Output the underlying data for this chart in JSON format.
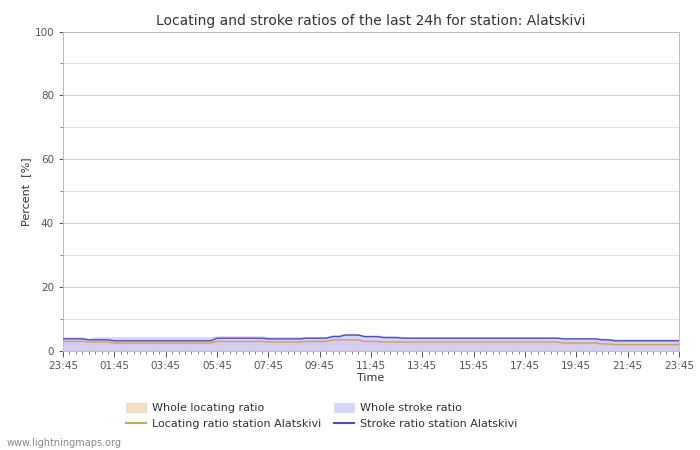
{
  "title": "Locating and stroke ratios of the last 24h for station: Alatskivi",
  "xlabel": "Time",
  "ylabel": "Percent  [%]",
  "ylim": [
    0,
    100
  ],
  "yticks": [
    0,
    20,
    40,
    60,
    80,
    100
  ],
  "yticks_minor": [
    10,
    30,
    50,
    70,
    90
  ],
  "x_labels": [
    "23:45",
    "01:45",
    "03:45",
    "05:45",
    "07:45",
    "09:45",
    "11:45",
    "13:45",
    "15:45",
    "17:45",
    "19:45",
    "21:45",
    "23:45"
  ],
  "n_points": 97,
  "whole_locating_fill_color": "#f5deb3",
  "whole_locating_fill_alpha": 0.85,
  "whole_stroke_fill_color": "#c8c8ff",
  "whole_stroke_fill_alpha": 0.75,
  "locating_line_color": "#d2a060",
  "stroke_line_color": "#5050b0",
  "background_color": "#ffffff",
  "plot_bg_color": "#ffffff",
  "grid_color": "#c8c8c8",
  "watermark": "www.lightningmaps.org",
  "title_fontsize": 10,
  "axis_fontsize": 8,
  "tick_fontsize": 7.5,
  "legend_fontsize": 8,
  "whole_locating_values": [
    3.5,
    3.5,
    3.5,
    3.5,
    3.5,
    3.5,
    3.5,
    3.5,
    3.5,
    3.5,
    3.5,
    3.5,
    3.5,
    3.5,
    3.5,
    3.5,
    3.5,
    3.5,
    3.5,
    3.5,
    3.5,
    3.5,
    3.5,
    3.5,
    3.5,
    3.5,
    3.5,
    3.5,
    3.5,
    3.5,
    3.5,
    3.5,
    3.5,
    3.5,
    3.5,
    3.5,
    3.5,
    3.5,
    3.5,
    3.5,
    3.5,
    3.5,
    3.5,
    3.5,
    3.5,
    3.5,
    3.5,
    3.5,
    3.5,
    3.5,
    3.5,
    3.5,
    3.5,
    3.5,
    3.5,
    3.5,
    3.5,
    3.5,
    3.5,
    3.5,
    3.5,
    3.5,
    3.5,
    3.5,
    3.5,
    3.5,
    3.5,
    3.5,
    3.5,
    3.5,
    3.5,
    3.5,
    3.5,
    3.5,
    3.5,
    3.5,
    3.5,
    3.5,
    3.5,
    3.5,
    3.5,
    3.5,
    3.5,
    3.5,
    3.5,
    3.5,
    3.5,
    3.5,
    3.5,
    3.5,
    3.5,
    3.5,
    3.5,
    3.5,
    3.5,
    3.5,
    3.5
  ],
  "whole_stroke_values": [
    4.5,
    4.5,
    4.5,
    4.5,
    4.0,
    4.5,
    4.5,
    4.5,
    4.5,
    4.5,
    4.5,
    4.5,
    4.5,
    4.5,
    4.5,
    4.5,
    4.5,
    4.5,
    4.5,
    4.5,
    4.5,
    4.5,
    4.5,
    4.5,
    4.8,
    4.8,
    4.8,
    4.8,
    4.8,
    4.8,
    4.8,
    4.8,
    4.5,
    4.5,
    4.5,
    4.5,
    4.5,
    4.5,
    4.5,
    4.5,
    4.5,
    4.5,
    5.2,
    5.2,
    5.5,
    5.5,
    5.5,
    5.0,
    5.0,
    5.0,
    4.8,
    4.8,
    4.8,
    4.5,
    4.5,
    4.5,
    4.5,
    4.5,
    4.5,
    4.5,
    4.5,
    4.5,
    4.5,
    4.5,
    4.5,
    4.5,
    4.5,
    4.5,
    4.5,
    4.5,
    4.5,
    4.5,
    4.5,
    4.5,
    4.5,
    4.5,
    4.5,
    4.5,
    4.2,
    4.2,
    4.2,
    4.2,
    4.2,
    4.2,
    4.0,
    4.0,
    3.8,
    3.8,
    3.8,
    3.8,
    3.8,
    3.8,
    3.8,
    3.8,
    3.8,
    3.8,
    3.8
  ],
  "locating_line_values": [
    3.0,
    3.0,
    3.0,
    3.0,
    2.8,
    2.8,
    2.8,
    2.8,
    2.5,
    2.5,
    2.5,
    2.5,
    2.5,
    2.5,
    2.5,
    2.5,
    2.5,
    2.5,
    2.5,
    2.5,
    2.5,
    2.5,
    2.5,
    2.5,
    3.0,
    3.0,
    3.0,
    3.0,
    3.0,
    3.0,
    3.0,
    3.0,
    2.8,
    2.8,
    2.8,
    2.8,
    2.8,
    2.8,
    3.0,
    3.0,
    3.0,
    3.0,
    3.5,
    3.5,
    3.5,
    3.5,
    3.5,
    3.0,
    3.0,
    3.0,
    2.8,
    2.8,
    2.8,
    2.8,
    2.8,
    2.8,
    2.8,
    2.8,
    2.8,
    2.8,
    2.8,
    2.8,
    2.8,
    2.8,
    2.8,
    2.8,
    2.8,
    2.8,
    2.8,
    2.8,
    2.8,
    2.8,
    2.8,
    2.8,
    2.8,
    2.8,
    2.8,
    2.8,
    2.5,
    2.5,
    2.5,
    2.5,
    2.5,
    2.5,
    2.2,
    2.2,
    2.0,
    2.0,
    2.0,
    2.0,
    2.0,
    2.0,
    2.0,
    2.0,
    2.0,
    2.0,
    2.0
  ],
  "stroke_line_values": [
    3.8,
    3.8,
    3.8,
    3.8,
    3.5,
    3.5,
    3.5,
    3.5,
    3.2,
    3.2,
    3.2,
    3.2,
    3.2,
    3.2,
    3.2,
    3.2,
    3.2,
    3.2,
    3.2,
    3.2,
    3.2,
    3.2,
    3.2,
    3.2,
    4.0,
    4.0,
    4.0,
    4.0,
    4.0,
    4.0,
    4.0,
    4.0,
    3.8,
    3.8,
    3.8,
    3.8,
    3.8,
    3.8,
    4.0,
    4.0,
    4.0,
    4.0,
    4.5,
    4.5,
    5.0,
    5.0,
    5.0,
    4.5,
    4.5,
    4.5,
    4.2,
    4.2,
    4.2,
    4.0,
    4.0,
    4.0,
    4.0,
    4.0,
    4.0,
    4.0,
    4.0,
    4.0,
    4.0,
    4.0,
    4.0,
    4.0,
    4.0,
    4.0,
    4.0,
    4.0,
    4.0,
    4.0,
    4.0,
    4.0,
    4.0,
    4.0,
    4.0,
    4.0,
    3.8,
    3.8,
    3.8,
    3.8,
    3.8,
    3.8,
    3.5,
    3.5,
    3.2,
    3.2,
    3.2,
    3.2,
    3.2,
    3.2,
    3.2,
    3.2,
    3.2,
    3.2,
    3.2
  ]
}
